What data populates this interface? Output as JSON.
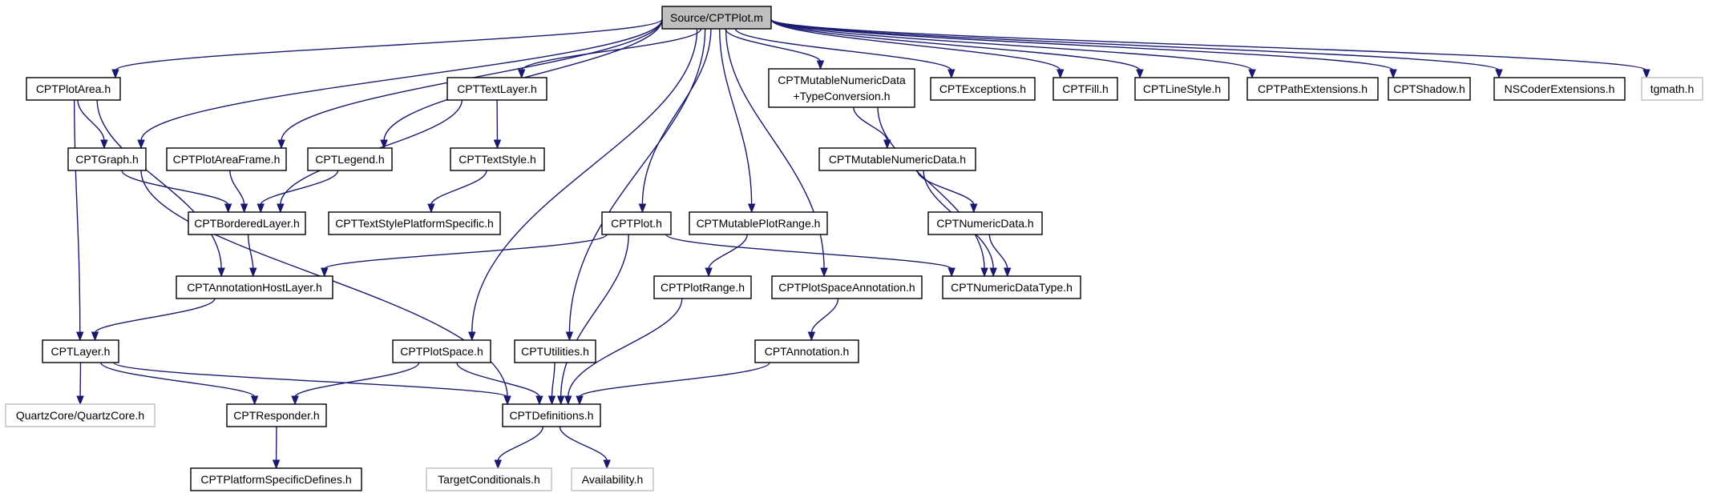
{
  "diagram": {
    "colors": {
      "edge": "#191970",
      "root_fill": "#bfbfbf",
      "external_border": "#bfbfbf",
      "node_border": "#000000"
    },
    "nodes": [
      {
        "id": "root",
        "lines": [
          "Source/CPTPlot.m"
        ],
        "kind": "root"
      },
      {
        "id": "plotarea",
        "lines": [
          "CPTPlotArea.h"
        ],
        "kind": "file"
      },
      {
        "id": "textlayer",
        "lines": [
          "CPTTextLayer.h"
        ],
        "kind": "file"
      },
      {
        "id": "mutnumdata_tc",
        "lines": [
          "CPTMutableNumericData",
          "+TypeConversion.h"
        ],
        "kind": "file"
      },
      {
        "id": "exceptions",
        "lines": [
          "CPTExceptions.h"
        ],
        "kind": "file"
      },
      {
        "id": "fill",
        "lines": [
          "CPTFill.h"
        ],
        "kind": "file"
      },
      {
        "id": "linestyle",
        "lines": [
          "CPTLineStyle.h"
        ],
        "kind": "file"
      },
      {
        "id": "pathext",
        "lines": [
          "CPTPathExtensions.h"
        ],
        "kind": "file"
      },
      {
        "id": "shadow",
        "lines": [
          "CPTShadow.h"
        ],
        "kind": "file"
      },
      {
        "id": "nscoder",
        "lines": [
          "NSCoderExtensions.h"
        ],
        "kind": "file"
      },
      {
        "id": "tgmath",
        "lines": [
          "tgmath.h"
        ],
        "kind": "external"
      },
      {
        "id": "graph",
        "lines": [
          "CPTGraph.h"
        ],
        "kind": "file"
      },
      {
        "id": "plotareaframe",
        "lines": [
          "CPTPlotAreaFrame.h"
        ],
        "kind": "file"
      },
      {
        "id": "legend",
        "lines": [
          "CPTLegend.h"
        ],
        "kind": "file"
      },
      {
        "id": "textstyle",
        "lines": [
          "CPTTextStyle.h"
        ],
        "kind": "file"
      },
      {
        "id": "mutnumdata",
        "lines": [
          "CPTMutableNumericData.h"
        ],
        "kind": "file"
      },
      {
        "id": "borderedlayer",
        "lines": [
          "CPTBorderedLayer.h"
        ],
        "kind": "file"
      },
      {
        "id": "textstyleps",
        "lines": [
          "CPTTextStylePlatformSpecific.h"
        ],
        "kind": "file"
      },
      {
        "id": "plot",
        "lines": [
          "CPTPlot.h"
        ],
        "kind": "file"
      },
      {
        "id": "mutplotrange",
        "lines": [
          "CPTMutablePlotRange.h"
        ],
        "kind": "file"
      },
      {
        "id": "numdata",
        "lines": [
          "CPTNumericData.h"
        ],
        "kind": "file"
      },
      {
        "id": "annothostlayer",
        "lines": [
          "CPTAnnotationHostLayer.h"
        ],
        "kind": "file"
      },
      {
        "id": "plotrange",
        "lines": [
          "CPTPlotRange.h"
        ],
        "kind": "file"
      },
      {
        "id": "plotspaceannot",
        "lines": [
          "CPTPlotSpaceAnnotation.h"
        ],
        "kind": "file"
      },
      {
        "id": "numdatatype",
        "lines": [
          "CPTNumericDataType.h"
        ],
        "kind": "file"
      },
      {
        "id": "layer",
        "lines": [
          "CPTLayer.h"
        ],
        "kind": "file"
      },
      {
        "id": "plotspace",
        "lines": [
          "CPTPlotSpace.h"
        ],
        "kind": "file"
      },
      {
        "id": "utilities",
        "lines": [
          "CPTUtilities.h"
        ],
        "kind": "file"
      },
      {
        "id": "annotation",
        "lines": [
          "CPTAnnotation.h"
        ],
        "kind": "file"
      },
      {
        "id": "quartzcore",
        "lines": [
          "QuartzCore/QuartzCore.h"
        ],
        "kind": "external"
      },
      {
        "id": "responder",
        "lines": [
          "CPTResponder.h"
        ],
        "kind": "file"
      },
      {
        "id": "definitions",
        "lines": [
          "CPTDefinitions.h"
        ],
        "kind": "file"
      },
      {
        "id": "platformdefs",
        "lines": [
          "CPTPlatformSpecificDefines.h"
        ],
        "kind": "file"
      },
      {
        "id": "targetcond",
        "lines": [
          "TargetConditionals.h"
        ],
        "kind": "external"
      },
      {
        "id": "availability",
        "lines": [
          "Availability.h"
        ],
        "kind": "external"
      }
    ],
    "edges": [
      [
        "root",
        "plotarea"
      ],
      [
        "root",
        "graph"
      ],
      [
        "root",
        "plotareaframe"
      ],
      [
        "root",
        "legend"
      ],
      [
        "root",
        "textlayer"
      ],
      [
        "root",
        "plotspace"
      ],
      [
        "root",
        "utilities"
      ],
      [
        "root",
        "plot"
      ],
      [
        "root",
        "mutplotrange"
      ],
      [
        "root",
        "plotspaceannot"
      ],
      [
        "root",
        "mutnumdata_tc"
      ],
      [
        "root",
        "exceptions"
      ],
      [
        "root",
        "fill"
      ],
      [
        "root",
        "linestyle"
      ],
      [
        "root",
        "pathext"
      ],
      [
        "root",
        "shadow"
      ],
      [
        "root",
        "nscoder"
      ],
      [
        "root",
        "tgmath"
      ],
      [
        "plotarea",
        "graph"
      ],
      [
        "plotarea",
        "annothostlayer"
      ],
      [
        "plotarea",
        "layer"
      ],
      [
        "graph",
        "borderedlayer"
      ],
      [
        "graph",
        "definitions"
      ],
      [
        "plotareaframe",
        "borderedlayer"
      ],
      [
        "legend",
        "borderedlayer"
      ],
      [
        "textlayer",
        "textstyle"
      ],
      [
        "textlayer",
        "borderedlayer"
      ],
      [
        "textstyle",
        "textstyleps"
      ],
      [
        "borderedlayer",
        "annothostlayer"
      ],
      [
        "annothostlayer",
        "layer"
      ],
      [
        "mutnumdata_tc",
        "mutnumdata"
      ],
      [
        "mutnumdata_tc",
        "numdatatype"
      ],
      [
        "mutnumdata",
        "numdata"
      ],
      [
        "mutnumdata",
        "numdatatype"
      ],
      [
        "numdata",
        "numdatatype"
      ],
      [
        "plot",
        "annothostlayer"
      ],
      [
        "plot",
        "numdatatype"
      ],
      [
        "plot",
        "definitions"
      ],
      [
        "mutplotrange",
        "plotrange"
      ],
      [
        "plotrange",
        "definitions"
      ],
      [
        "plotspaceannot",
        "annotation"
      ],
      [
        "annotation",
        "definitions"
      ],
      [
        "layer",
        "quartzcore"
      ],
      [
        "layer",
        "responder"
      ],
      [
        "layer",
        "definitions"
      ],
      [
        "plotspace",
        "responder"
      ],
      [
        "plotspace",
        "definitions"
      ],
      [
        "utilities",
        "definitions"
      ],
      [
        "responder",
        "platformdefs"
      ],
      [
        "definitions",
        "targetcond"
      ],
      [
        "definitions",
        "availability"
      ]
    ]
  }
}
